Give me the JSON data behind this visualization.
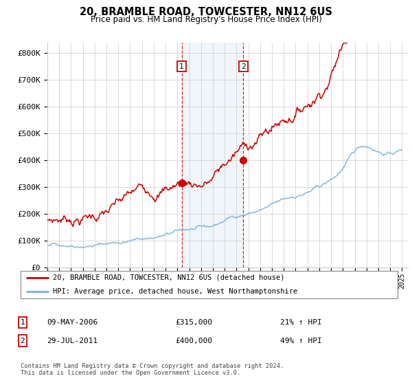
{
  "title": "20, BRAMBLE ROAD, TOWCESTER, NN12 6US",
  "subtitle": "Price paid vs. HM Land Registry's House Price Index (HPI)",
  "ylabel_ticks": [
    "£0",
    "£100K",
    "£200K",
    "£300K",
    "£400K",
    "£500K",
    "£600K",
    "£700K",
    "£800K"
  ],
  "ytick_values": [
    0,
    100000,
    200000,
    300000,
    400000,
    500000,
    600000,
    700000,
    800000
  ],
  "ylim": [
    0,
    840000
  ],
  "xlim_start": 1995.0,
  "xlim_end": 2025.5,
  "hpi_color": "#7ab0d8",
  "price_color": "#cc0000",
  "transaction1_x": 2006.36,
  "transaction1_y": 315000,
  "transaction2_x": 2011.58,
  "transaction2_y": 400000,
  "shade_x1_start": 2006.36,
  "shade_x1_end": 2011.58,
  "legend_line1": "20, BRAMBLE ROAD, TOWCESTER, NN12 6US (detached house)",
  "legend_line2": "HPI: Average price, detached house, West Northamptonshire",
  "table_row1_label": "1",
  "table_row1_date": "09-MAY-2006",
  "table_row1_price": "£315,000",
  "table_row1_hpi": "21% ↑ HPI",
  "table_row2_label": "2",
  "table_row2_date": "29-JUL-2011",
  "table_row2_price": "£400,000",
  "table_row2_hpi": "49% ↑ HPI",
  "footnote": "Contains HM Land Registry data © Crown copyright and database right 2024.\nThis data is licensed under the Open Government Licence v3.0.",
  "background_color": "#ffffff",
  "grid_color": "#cccccc",
  "shade_color": "#cce0f0"
}
